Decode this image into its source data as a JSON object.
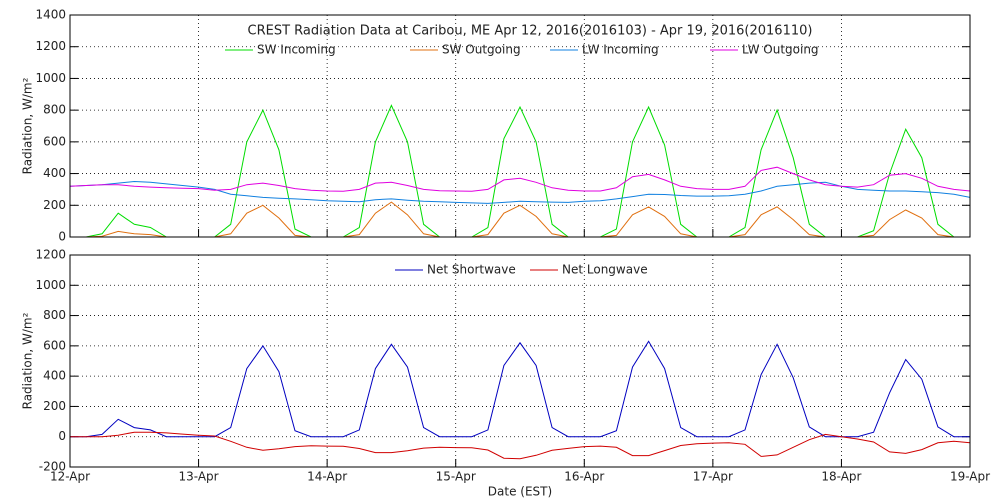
{
  "chart_data": [
    {
      "type": "line",
      "title": "CREST Radiation Data at Caribou, ME   Apr 12, 2016(2016103) - Apr 19, 2016(2016110)",
      "y_label": "Radiation, W/m²",
      "x": [
        0,
        0.125,
        0.25,
        0.375,
        0.5,
        0.625,
        0.75,
        0.875,
        1,
        1.125,
        1.25,
        1.375,
        1.5,
        1.625,
        1.75,
        1.875,
        2,
        2.125,
        2.25,
        2.375,
        2.5,
        2.625,
        2.75,
        2.875,
        3,
        3.125,
        3.25,
        3.375,
        3.5,
        3.625,
        3.75,
        3.875,
        4,
        4.125,
        4.25,
        4.375,
        4.5,
        4.625,
        4.75,
        4.875,
        5,
        5.125,
        5.25,
        5.375,
        5.5,
        5.625,
        5.75,
        5.875,
        6,
        6.125,
        6.25,
        6.375,
        6.5,
        6.625,
        6.75,
        6.875,
        7
      ],
      "xlim": [
        0,
        7
      ],
      "xticks": [
        1,
        2,
        3,
        4,
        5,
        6
      ],
      "ylim": [
        0,
        1400
      ],
      "yticks": [
        0,
        200,
        400,
        600,
        800,
        1000,
        1200,
        1400
      ],
      "grid": true,
      "series": [
        {
          "name": "SW Incoming",
          "color": "#00dd00",
          "values": [
            0,
            0,
            20,
            150,
            80,
            60,
            0,
            0,
            0,
            0,
            80,
            600,
            800,
            550,
            50,
            0,
            0,
            0,
            60,
            600,
            830,
            600,
            80,
            0,
            0,
            0,
            60,
            620,
            820,
            600,
            80,
            0,
            0,
            0,
            50,
            600,
            820,
            580,
            80,
            0,
            0,
            0,
            60,
            550,
            800,
            500,
            80,
            0,
            0,
            0,
            40,
            400,
            680,
            500,
            80,
            0,
            0
          ]
        },
        {
          "name": "SW Outgoing",
          "color": "#e07010",
          "values": [
            0,
            0,
            5,
            35,
            20,
            15,
            0,
            0,
            0,
            0,
            20,
            150,
            200,
            120,
            10,
            0,
            0,
            0,
            15,
            150,
            220,
            140,
            20,
            0,
            0,
            0,
            15,
            150,
            200,
            130,
            20,
            0,
            0,
            0,
            10,
            140,
            190,
            130,
            20,
            0,
            0,
            0,
            15,
            140,
            190,
            110,
            15,
            0,
            0,
            0,
            10,
            110,
            170,
            120,
            15,
            0,
            0
          ]
        },
        {
          "name": "LW Incoming",
          "color": "#1080e0",
          "values": [
            320,
            325,
            330,
            340,
            350,
            345,
            335,
            325,
            315,
            300,
            270,
            260,
            250,
            245,
            240,
            235,
            228,
            225,
            222,
            235,
            240,
            232,
            225,
            222,
            218,
            215,
            212,
            218,
            225,
            222,
            220,
            218,
            225,
            228,
            240,
            255,
            270,
            268,
            262,
            258,
            258,
            260,
            270,
            290,
            320,
            330,
            340,
            345,
            320,
            300,
            295,
            290,
            290,
            285,
            280,
            270,
            250
          ]
        },
        {
          "name": "LW Outgoing",
          "color": "#e000e0",
          "values": [
            320,
            325,
            330,
            330,
            320,
            315,
            310,
            308,
            305,
            295,
            300,
            330,
            340,
            325,
            305,
            295,
            290,
            288,
            300,
            340,
            345,
            325,
            300,
            292,
            290,
            288,
            300,
            360,
            370,
            345,
            310,
            295,
            290,
            290,
            310,
            380,
            395,
            360,
            320,
            305,
            300,
            300,
            320,
            420,
            440,
            400,
            360,
            330,
            320,
            315,
            330,
            390,
            400,
            370,
            320,
            300,
            290
          ]
        }
      ]
    },
    {
      "type": "line",
      "y_label": "Radiation, W/m²",
      "x_label": "Date (EST)",
      "x": [
        0,
        0.125,
        0.25,
        0.375,
        0.5,
        0.625,
        0.75,
        0.875,
        1,
        1.125,
        1.25,
        1.375,
        1.5,
        1.625,
        1.75,
        1.875,
        2,
        2.125,
        2.25,
        2.375,
        2.5,
        2.625,
        2.75,
        2.875,
        3,
        3.125,
        3.25,
        3.375,
        3.5,
        3.625,
        3.75,
        3.875,
        4,
        4.125,
        4.25,
        4.375,
        4.5,
        4.625,
        4.75,
        4.875,
        5,
        5.125,
        5.25,
        5.375,
        5.5,
        5.625,
        5.75,
        5.875,
        6,
        6.125,
        6.25,
        6.375,
        6.5,
        6.625,
        6.75,
        6.875,
        7
      ],
      "xlim": [
        0,
        7
      ],
      "xticks": [
        {
          "value": 0,
          "label": "12-Apr"
        },
        {
          "value": 1,
          "label": "13-Apr"
        },
        {
          "value": 2,
          "label": "14-Apr"
        },
        {
          "value": 3,
          "label": "15-Apr"
        },
        {
          "value": 4,
          "label": "16-Apr"
        },
        {
          "value": 5,
          "label": "17-Apr"
        },
        {
          "value": 6,
          "label": "18-Apr"
        },
        {
          "value": 7,
          "label": "19-Apr"
        }
      ],
      "ylim": [
        -200,
        1200
      ],
      "yticks": [
        -200,
        0,
        200,
        400,
        600,
        800,
        1000,
        1200
      ],
      "grid": true,
      "series": [
        {
          "name": "Net Shortwave",
          "color": "#0000c0",
          "values": [
            0,
            0,
            15,
            115,
            60,
            45,
            0,
            0,
            0,
            0,
            60,
            450,
            600,
            430,
            40,
            0,
            0,
            0,
            45,
            450,
            610,
            460,
            60,
            0,
            0,
            0,
            45,
            470,
            620,
            470,
            60,
            0,
            0,
            0,
            40,
            460,
            630,
            450,
            60,
            0,
            0,
            0,
            45,
            410,
            610,
            390,
            65,
            0,
            0,
            0,
            30,
            290,
            510,
            380,
            65,
            0,
            0
          ]
        },
        {
          "name": "Net Longwave",
          "color": "#d00000",
          "values": [
            0,
            0,
            0,
            10,
            30,
            30,
            25,
            17,
            10,
            5,
            -30,
            -70,
            -90,
            -80,
            -65,
            -60,
            -62,
            -63,
            -78,
            -105,
            -105,
            -93,
            -75,
            -70,
            -72,
            -73,
            -88,
            -142,
            -145,
            -123,
            -90,
            -77,
            -65,
            -62,
            -70,
            -125,
            -125,
            -92,
            -58,
            -47,
            -42,
            -40,
            -50,
            -130,
            -120,
            -70,
            -20,
            15,
            0,
            -15,
            -35,
            -100,
            -110,
            -85,
            -40,
            -30,
            -40
          ]
        }
      ]
    }
  ]
}
